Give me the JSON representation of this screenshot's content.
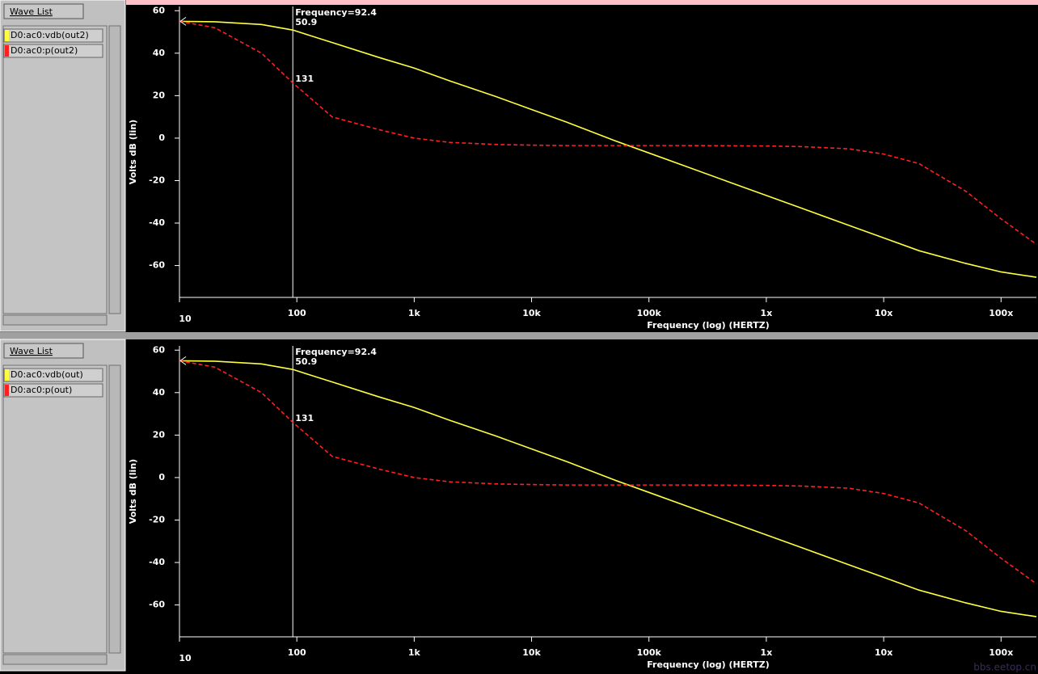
{
  "chart_data": [
    {
      "type": "line",
      "legend_title": "Wave List",
      "xlabel": "Frequency (log) (HERTZ)",
      "ylabel": "Volts dB (lin)",
      "log_x": true,
      "x": [
        10,
        20,
        50,
        92.4,
        200,
        500,
        1000,
        2000,
        5000,
        10000,
        20000,
        50000,
        100000,
        200000,
        500000,
        1000000,
        2000000,
        5000000,
        10000000,
        20000000,
        50000000,
        100000000,
        200000000
      ],
      "series": [
        {
          "name": "D0:ac0:vdb(out2)",
          "color": "#ffff40",
          "dashed": false,
          "values": [
            55,
            54.8,
            53.5,
            50.9,
            45,
            38,
            33,
            27,
            19.5,
            13.5,
            7.5,
            -1,
            -7,
            -13,
            -21,
            -27,
            -33,
            -41,
            -47,
            -53,
            -59,
            -63,
            -65.5
          ]
        },
        {
          "name": "D0:ac0:p(out2)",
          "color": "#ff2020",
          "dashed": true,
          "values": [
            55,
            52,
            40,
            26,
            10,
            4,
            0,
            -2,
            -3,
            -3.3,
            -3.5,
            -3.5,
            -3.5,
            -3.5,
            -3.6,
            -3.7,
            -4,
            -5,
            -7.5,
            -12,
            -25,
            -38,
            -50
          ]
        }
      ],
      "xlim": [
        10,
        200000000
      ],
      "xticks": [
        10,
        100,
        {
          "value": 1000,
          "label": "1k"
        },
        {
          "value": 10000,
          "label": "10k"
        },
        {
          "value": 100000,
          "label": "100k"
        },
        {
          "value": 1000000,
          "label": "1x"
        },
        {
          "value": 10000000,
          "label": "10x"
        },
        {
          "value": 100000000,
          "label": "100x"
        }
      ],
      "ylim": [
        -75,
        62
      ],
      "yticks": [
        -60,
        -40,
        -20,
        0,
        20,
        40,
        60
      ],
      "cursor": {
        "value": 92.4,
        "label": "Frequency=92.4"
      },
      "annotations": [
        "50.9",
        "131"
      ]
    },
    {
      "type": "line",
      "legend_title": "Wave List",
      "xlabel": "Frequency (log) (HERTZ)",
      "ylabel": "Volts dB (lin)",
      "log_x": true,
      "x": [
        10,
        20,
        50,
        92.4,
        200,
        500,
        1000,
        2000,
        5000,
        10000,
        20000,
        50000,
        100000,
        200000,
        500000,
        1000000,
        2000000,
        5000000,
        10000000,
        20000000,
        50000000,
        100000000,
        200000000
      ],
      "series": [
        {
          "name": "D0:ac0:vdb(out)",
          "color": "#ffff40",
          "dashed": false,
          "values": [
            55,
            54.8,
            53.5,
            50.9,
            45,
            38,
            33,
            27,
            19.5,
            13.5,
            7.5,
            -1,
            -7,
            -13,
            -21,
            -27,
            -33,
            -41,
            -47,
            -53,
            -59,
            -63,
            -65.5
          ]
        },
        {
          "name": "D0:ac0:p(out)",
          "color": "#ff2020",
          "dashed": true,
          "values": [
            55,
            52,
            40,
            26,
            10,
            4,
            0,
            -2,
            -3,
            -3.3,
            -3.5,
            -3.5,
            -3.5,
            -3.5,
            -3.6,
            -3.7,
            -4,
            -5,
            -7.5,
            -12,
            -25,
            -38,
            -50
          ]
        }
      ],
      "xlim": [
        10,
        200000000
      ],
      "xticks": [
        10,
        100,
        {
          "value": 1000,
          "label": "1k"
        },
        {
          "value": 10000,
          "label": "10k"
        },
        {
          "value": 100000,
          "label": "100k"
        },
        {
          "value": 1000000,
          "label": "1x"
        },
        {
          "value": 10000000,
          "label": "10x"
        },
        {
          "value": 100000000,
          "label": "100x"
        }
      ],
      "ylim": [
        -75,
        62
      ],
      "yticks": [
        -60,
        -40,
        -20,
        0,
        20,
        40,
        60
      ],
      "cursor": {
        "value": 92.4,
        "label": "Frequency=92.4"
      },
      "annotations": [
        "50.9",
        "131"
      ]
    }
  ],
  "watermark": "bbs.eetop.cn"
}
